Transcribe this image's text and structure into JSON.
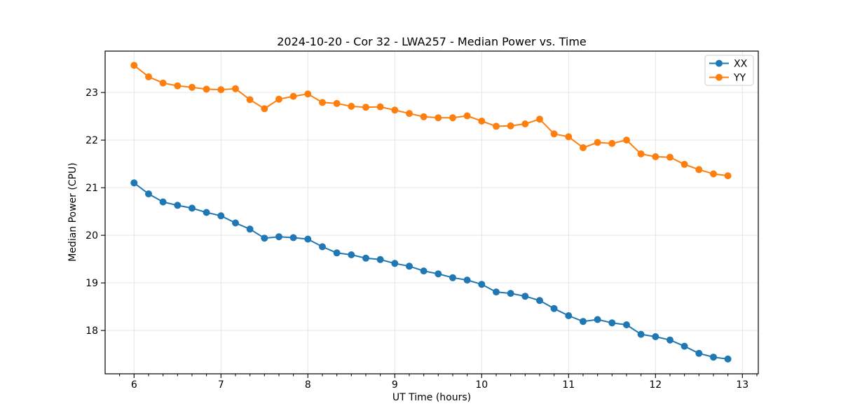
{
  "chart_data": {
    "type": "line",
    "title": "2024-10-20 - Cor 32 - LWA257 - Median Power vs. Time",
    "xlabel": "UT Time (hours)",
    "ylabel": "Median Power (CPU)",
    "xlim": [
      5.667,
      13.183
    ],
    "ylim": [
      17.09,
      23.87
    ],
    "x_major_ticks": [
      6,
      7,
      8,
      9,
      10,
      11,
      12,
      13
    ],
    "x_major_tick_labels": [
      "6",
      "7",
      "8",
      "9",
      "10",
      "11",
      "12",
      "13"
    ],
    "x_minor_tick_step_hours": 0.1667,
    "y_major_ticks": [
      18,
      19,
      20,
      21,
      22,
      23
    ],
    "y_major_tick_labels": [
      "18",
      "19",
      "20",
      "21",
      "22",
      "23"
    ],
    "grid": true,
    "grid_color": "#e5e5e5",
    "legend_position": "upper right",
    "x": [
      6.0,
      6.167,
      6.333,
      6.5,
      6.667,
      6.833,
      7.0,
      7.167,
      7.333,
      7.5,
      7.667,
      7.833,
      8.0,
      8.167,
      8.333,
      8.5,
      8.667,
      8.833,
      9.0,
      9.167,
      9.333,
      9.5,
      9.667,
      9.833,
      10.0,
      10.167,
      10.333,
      10.5,
      10.667,
      10.833,
      11.0,
      11.167,
      11.333,
      11.5,
      11.667,
      11.833,
      12.0,
      12.167,
      12.333,
      12.5,
      12.667,
      12.833
    ],
    "series": [
      {
        "name": "XX",
        "color": "#1f77b4",
        "values": [
          21.1,
          20.87,
          20.7,
          20.63,
          20.57,
          20.48,
          20.41,
          20.26,
          20.13,
          19.94,
          19.97,
          19.95,
          19.92,
          19.76,
          19.63,
          19.59,
          19.52,
          19.49,
          19.41,
          19.35,
          19.25,
          19.19,
          19.11,
          19.06,
          18.97,
          18.81,
          18.78,
          18.72,
          18.63,
          18.46,
          18.31,
          18.19,
          18.23,
          18.16,
          18.12,
          17.92,
          17.87,
          17.8,
          17.67,
          17.52,
          17.44,
          17.4
        ]
      },
      {
        "name": "YY",
        "color": "#ff7f0e",
        "values": [
          23.57,
          23.33,
          23.2,
          23.14,
          23.11,
          23.07,
          23.06,
          23.08,
          22.85,
          22.66,
          22.86,
          22.92,
          22.97,
          22.79,
          22.77,
          22.71,
          22.69,
          22.7,
          22.63,
          22.56,
          22.49,
          22.47,
          22.47,
          22.51,
          22.4,
          22.29,
          22.3,
          22.34,
          22.44,
          22.13,
          22.07,
          21.84,
          21.95,
          21.93,
          22.0,
          21.71,
          21.65,
          21.64,
          21.49,
          21.38,
          21.29,
          21.25
        ]
      }
    ],
    "legend": {
      "labels": [
        "XX",
        "YY"
      ]
    }
  }
}
